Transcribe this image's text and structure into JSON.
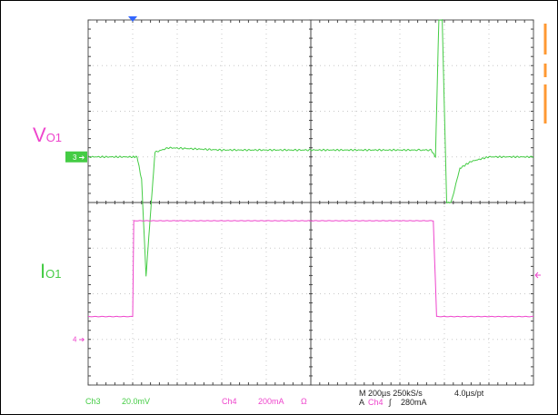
{
  "chart_data": {
    "type": "line",
    "x_unit": "µs",
    "x_range": [
      -200,
      1800
    ],
    "series": [
      {
        "name": "V_O1",
        "channel": "Ch3",
        "color": "#44cc44",
        "unit": "mV",
        "scale_per_div": 20.0,
        "x": [
          -200,
          0,
          20,
          40,
          60,
          100,
          160,
          400,
          800,
          1000,
          1270,
          1340,
          1360,
          1375,
          1390,
          1410,
          1430,
          1470,
          1520,
          1600,
          1800
        ],
        "y": [
          0,
          0,
          0,
          -10,
          -52,
          2,
          4,
          3,
          3,
          3,
          3,
          3,
          0,
          60,
          60,
          -20,
          -20,
          -5,
          -2,
          0,
          0
        ]
      },
      {
        "name": "I_O1",
        "channel": "Ch4",
        "color": "#ee44cc",
        "unit": "mA",
        "scale_per_div": 200,
        "x": [
          -200,
          0,
          5,
          1350,
          1365,
          1800
        ],
        "y": [
          0,
          0,
          420,
          420,
          0,
          0
        ]
      }
    ],
    "labels": {
      "v_main": "V",
      "v_sub": "O1",
      "i_main": "I",
      "i_sub": "O1"
    },
    "markers": {
      "ch3": "3",
      "ch4": "4"
    },
    "grid": true
  },
  "status": {
    "ch3_label": "Ch3",
    "ch3_scale": "20.0mV",
    "ch4_label": "Ch4",
    "ch4_scale": "200mA",
    "ch4_coupling": "Ω",
    "timebase": "M 200µs 250kS/s",
    "per_point": "4.0µs/pt",
    "trig_a": "A",
    "trig_source": "Ch4",
    "trig_slope": "∫",
    "trig_level": "280mA"
  }
}
